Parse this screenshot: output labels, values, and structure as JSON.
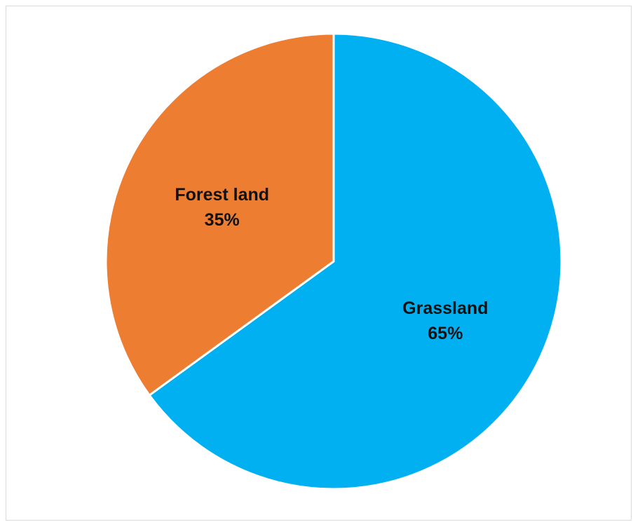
{
  "chart_data": {
    "type": "pie",
    "title": "",
    "legend": "none",
    "start_angle_deg": 0,
    "direction": "clockwise",
    "slices": [
      {
        "label": "Grassland",
        "value": 65,
        "value_label": "65%",
        "color": "#00B0F0"
      },
      {
        "label": "Forest land",
        "value": 35,
        "value_label": "35%",
        "color": "#ED7D31"
      }
    ],
    "slice_border_color": "#FFFFFF"
  }
}
